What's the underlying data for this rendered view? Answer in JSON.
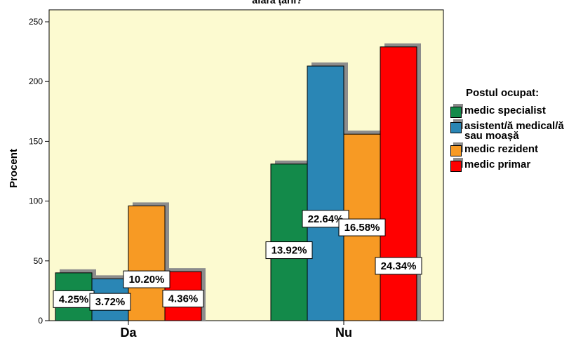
{
  "chart_data": {
    "type": "bar",
    "title": "afară țării?",
    "ylabel": "Procent",
    "xlabel": "",
    "categories": [
      "Da",
      "Nu"
    ],
    "ylim": [
      0,
      260
    ],
    "yticks": [
      0,
      50,
      100,
      150,
      200,
      250
    ],
    "legend": {
      "title": "Postul ocupat:",
      "position": "right"
    },
    "plot_background": "#fcfad0",
    "series": [
      {
        "name": "medic specialist",
        "color": "#138a4a",
        "values": [
          40,
          131
        ],
        "labels": [
          "4.25%",
          "13.92%"
        ]
      },
      {
        "name": "asistent/ă medical/ă sau moașă",
        "color": "#2a86b5",
        "values": [
          35,
          213
        ],
        "labels": [
          "3.72%",
          "22.64%"
        ]
      },
      {
        "name": "medic rezident",
        "color": "#f79a24",
        "values": [
          96,
          156
        ],
        "labels": [
          "10.20%",
          "16.58%"
        ]
      },
      {
        "name": "medic primar",
        "color": "#ff0000",
        "values": [
          41,
          229
        ],
        "labels": [
          "4.36%",
          "24.34%"
        ]
      }
    ]
  }
}
